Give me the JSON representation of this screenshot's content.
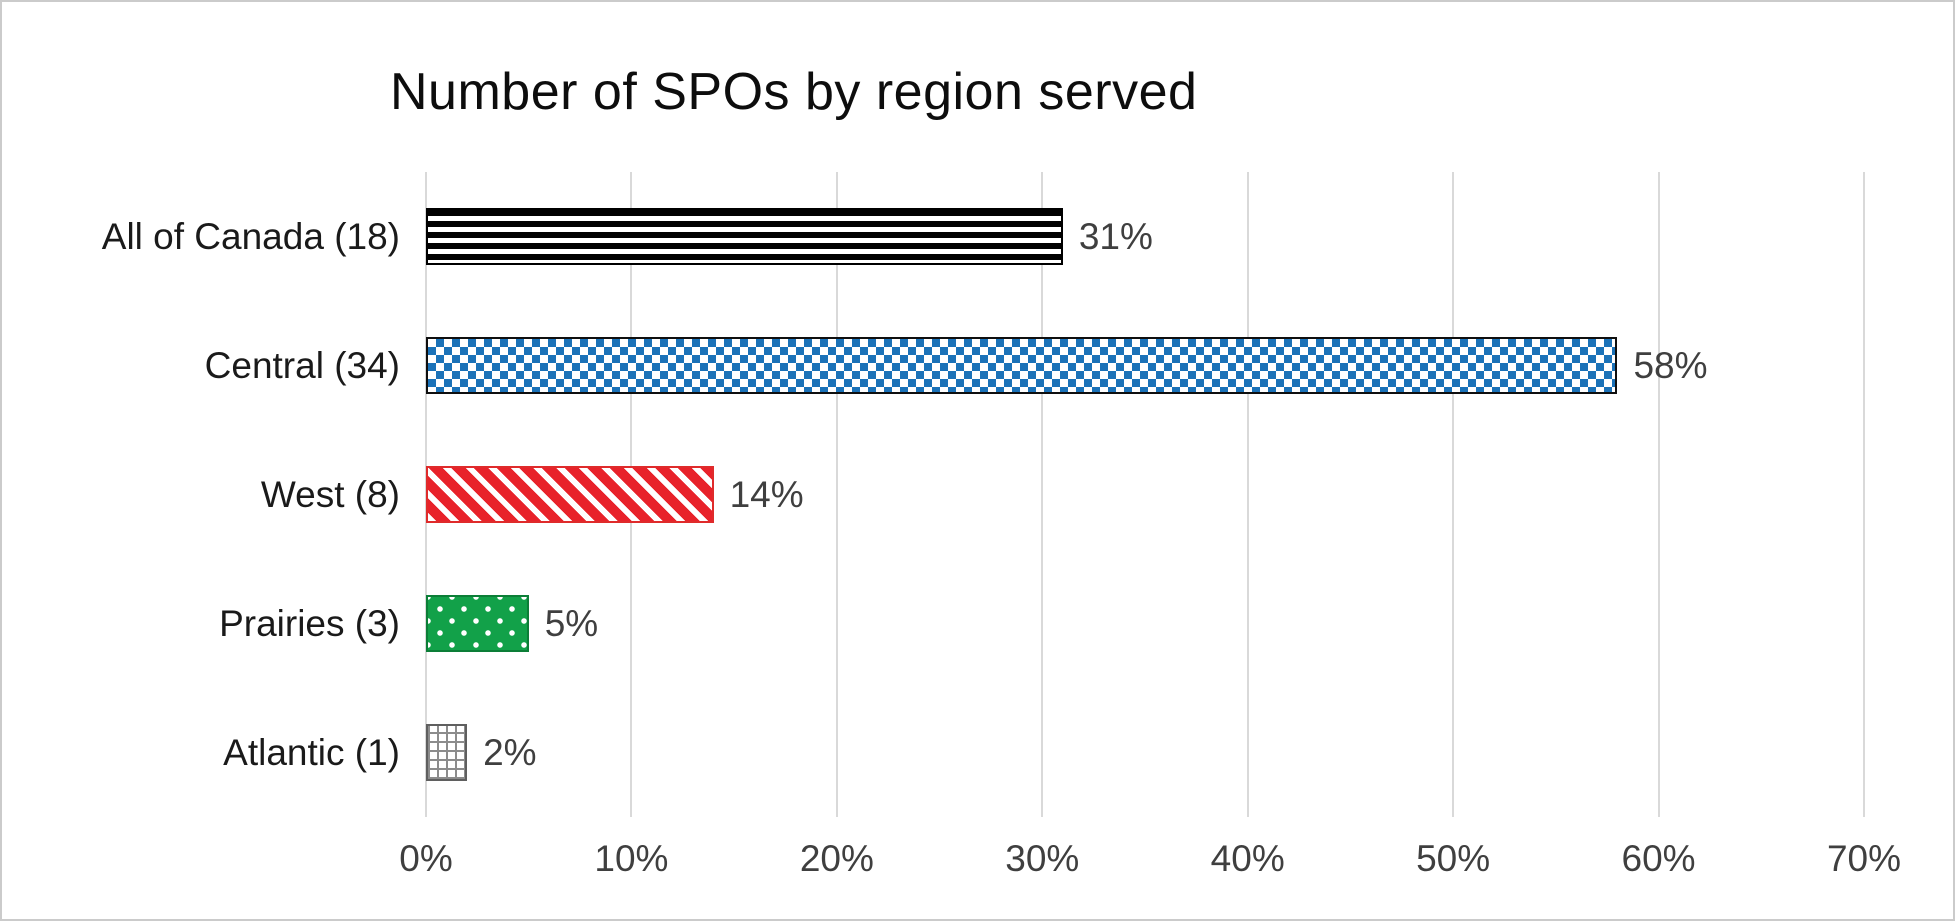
{
  "chart_data": {
    "type": "bar",
    "orientation": "horizontal",
    "title": "Number of SPOs by region served",
    "categories": [
      "All of Canada (18)",
      "Central (34)",
      "West (8)",
      "Prairies (3)",
      "Atlantic (1)"
    ],
    "values": [
      31,
      58,
      14,
      5,
      2
    ],
    "value_labels": [
      "31%",
      "58%",
      "14%",
      "5%",
      "2%"
    ],
    "x_ticks": [
      "0%",
      "10%",
      "20%",
      "30%",
      "40%",
      "50%",
      "60%",
      "70%"
    ],
    "x_tick_values": [
      0,
      10,
      20,
      30,
      40,
      50,
      60,
      70
    ],
    "xlim": [
      0,
      70
    ],
    "xlabel": "",
    "ylabel": "",
    "grid": true,
    "legend": "none",
    "patterns": [
      "horizontal-stripes-black",
      "checker-blue",
      "diagonal-stripes-red",
      "dots-green",
      "grid-gray"
    ],
    "colors": {
      "stripe_black": "#000000",
      "checker_blue": "#1b72b8",
      "diagonal_red": "#e8222a",
      "dots_green": "#12a149",
      "grid_gray": "#8c8c8c",
      "gridline": "#d9d9d9",
      "title_text": "#0d0d0d",
      "axis_text": "#3f3f3f",
      "background": "#ffffff"
    }
  }
}
